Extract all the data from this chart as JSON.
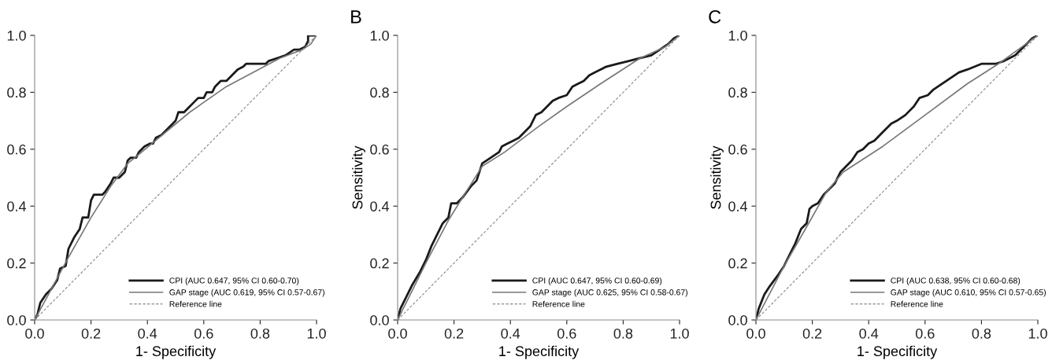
{
  "chart_data": [
    {
      "type": "line",
      "xlabel": "1- Specificity",
      "xlim": [
        0,
        1
      ],
      "ylim": [
        0,
        1
      ],
      "xticks": [
        {
          "value": 0,
          "label": "0.0"
        },
        {
          "value": 0.2,
          "label": "0.2"
        },
        {
          "value": 0.4,
          "label": "0.4"
        },
        {
          "value": 0.6,
          "label": "0.6"
        },
        {
          "value": 0.8,
          "label": "0.8"
        },
        {
          "value": 1,
          "label": "1.0"
        }
      ],
      "yticks": [
        {
          "value": 0,
          "label": "0.0"
        },
        {
          "value": 0.2,
          "label": "0.2"
        },
        {
          "value": 0.4,
          "label": "0.4"
        },
        {
          "value": 0.6,
          "label": "0.6"
        },
        {
          "value": 0.8,
          "label": "0.8"
        },
        {
          "value": 1,
          "label": "1.0"
        }
      ],
      "grid": false,
      "legend": "bottom right",
      "marker": "none",
      "series": [
        {
          "name": "CPI (AUC 0.647, 95% CI 0.60-0.70)",
          "color": "#1a1a1a",
          "line_style": "solid",
          "x": [
            0,
            0.01,
            0.02,
            0.04,
            0.06,
            0.08,
            0.09,
            0.11,
            0.12,
            0.14,
            0.16,
            0.17,
            0.19,
            0.2,
            0.21,
            0.24,
            0.25,
            0.27,
            0.28,
            0.3,
            0.32,
            0.33,
            0.34,
            0.36,
            0.37,
            0.39,
            0.41,
            0.42,
            0.43,
            0.45,
            0.47,
            0.49,
            0.5,
            0.51,
            0.53,
            0.55,
            0.56,
            0.58,
            0.6,
            0.61,
            0.63,
            0.64,
            0.66,
            0.68,
            0.7,
            0.72,
            0.74,
            0.75,
            0.82,
            0.83,
            0.86,
            0.89,
            0.92,
            0.94,
            0.96,
            0.97,
            0.97,
            1.0
          ],
          "values": [
            0,
            0.02,
            0.06,
            0.09,
            0.11,
            0.14,
            0.18,
            0.19,
            0.25,
            0.29,
            0.32,
            0.36,
            0.36,
            0.42,
            0.44,
            0.44,
            0.45,
            0.48,
            0.5,
            0.5,
            0.52,
            0.56,
            0.57,
            0.57,
            0.59,
            0.61,
            0.62,
            0.62,
            0.64,
            0.65,
            0.67,
            0.69,
            0.7,
            0.73,
            0.73,
            0.75,
            0.76,
            0.78,
            0.78,
            0.8,
            0.8,
            0.82,
            0.84,
            0.84,
            0.86,
            0.88,
            0.89,
            0.9,
            0.9,
            0.91,
            0.92,
            0.93,
            0.95,
            0.95,
            0.96,
            0.98,
            1.0,
            1.0
          ]
        },
        {
          "name": "GAP stage (AUC 0.619, 95% CI 0.57-0.67)",
          "color": "#777777",
          "line_style": "solid",
          "x": [
            0,
            0.12,
            0.2,
            0.27,
            0.33,
            0.38,
            0.55,
            0.68,
            0.87,
            0.95,
            0.98,
            1
          ],
          "values": [
            0,
            0.22,
            0.36,
            0.47,
            0.55,
            0.59,
            0.73,
            0.82,
            0.92,
            0.95,
            0.97,
            1
          ]
        },
        {
          "name": "Reference line",
          "color": "#888888",
          "line_style": "dashed",
          "x": [
            0,
            1
          ],
          "values": [
            0,
            1
          ]
        }
      ]
    },
    {
      "type": "line",
      "title": "B",
      "xlabel": "1- Specificity",
      "ylabel": "Sensitivity",
      "xlim": [
        0,
        1
      ],
      "ylim": [
        0,
        1
      ],
      "xticks": [
        {
          "value": 0,
          "label": "0.0"
        },
        {
          "value": 0.2,
          "label": "0.2"
        },
        {
          "value": 0.4,
          "label": "0.4"
        },
        {
          "value": 0.6,
          "label": "0.6"
        },
        {
          "value": 0.8,
          "label": "0.8"
        },
        {
          "value": 1,
          "label": "1.0"
        }
      ],
      "yticks": [
        {
          "value": 0,
          "label": "0.0"
        },
        {
          "value": 0.2,
          "label": "0.2"
        },
        {
          "value": 0.4,
          "label": "0.4"
        },
        {
          "value": 0.6,
          "label": "0.6"
        },
        {
          "value": 0.8,
          "label": "0.8"
        },
        {
          "value": 1,
          "label": "1.0"
        }
      ],
      "grid": false,
      "legend": "bottom right",
      "marker": "none",
      "series": [
        {
          "name": "CPI (AUC 0.647, 95% CI 0.60-0.69)",
          "color": "#1a1a1a",
          "line_style": "solid",
          "x": [
            0,
            0.01,
            0.03,
            0.05,
            0.08,
            0.1,
            0.12,
            0.14,
            0.16,
            0.18,
            0.19,
            0.21,
            0.23,
            0.26,
            0.28,
            0.3,
            0.33,
            0.36,
            0.37,
            0.39,
            0.41,
            0.43,
            0.45,
            0.47,
            0.49,
            0.51,
            0.53,
            0.55,
            0.57,
            0.6,
            0.62,
            0.64,
            0.66,
            0.68,
            0.7,
            0.74,
            0.78,
            0.82,
            0.86,
            0.9,
            0.93,
            0.96,
            0.98,
            1
          ],
          "values": [
            0,
            0.04,
            0.08,
            0.12,
            0.17,
            0.21,
            0.26,
            0.3,
            0.34,
            0.36,
            0.41,
            0.41,
            0.43,
            0.47,
            0.49,
            0.55,
            0.57,
            0.59,
            0.61,
            0.62,
            0.63,
            0.64,
            0.66,
            0.68,
            0.72,
            0.73,
            0.75,
            0.77,
            0.78,
            0.79,
            0.82,
            0.83,
            0.84,
            0.86,
            0.87,
            0.89,
            0.9,
            0.91,
            0.92,
            0.93,
            0.95,
            0.97,
            0.99,
            1
          ]
        },
        {
          "name": "GAP stage (AUC 0.625, 95% CI 0.58-0.67)",
          "color": "#777777",
          "line_style": "solid",
          "x": [
            0,
            0.1,
            0.18,
            0.23,
            0.3,
            0.38,
            0.5,
            0.6,
            0.72,
            0.86,
            0.95,
            1
          ],
          "values": [
            0,
            0.2,
            0.35,
            0.43,
            0.54,
            0.59,
            0.68,
            0.75,
            0.83,
            0.92,
            0.96,
            1
          ]
        },
        {
          "name": "Reference line",
          "color": "#888888",
          "line_style": "dashed",
          "x": [
            0,
            1
          ],
          "values": [
            0,
            1
          ]
        }
      ]
    },
    {
      "type": "line",
      "title": "C",
      "xlabel": "1- Specificity",
      "ylabel": "Sensitivity",
      "xlim": [
        0,
        1
      ],
      "ylim": [
        0,
        1
      ],
      "xticks": [
        {
          "value": 0,
          "label": "0.0"
        },
        {
          "value": 0.2,
          "label": "0.2"
        },
        {
          "value": 0.4,
          "label": "0.4"
        },
        {
          "value": 0.6,
          "label": "0.6"
        },
        {
          "value": 0.8,
          "label": "0.8"
        },
        {
          "value": 1,
          "label": "1.0"
        }
      ],
      "yticks": [
        {
          "value": 0,
          "label": "0.0"
        },
        {
          "value": 0.2,
          "label": "0.2"
        },
        {
          "value": 0.4,
          "label": "0.4"
        },
        {
          "value": 0.6,
          "label": "0.6"
        },
        {
          "value": 0.8,
          "label": "0.8"
        },
        {
          "value": 1,
          "label": "1.0"
        }
      ],
      "grid": false,
      "legend": "bottom right",
      "marker": "none",
      "series": [
        {
          "name": "CPI (AUC 0.638, 95% CI 0.60-0.68)",
          "color": "#1a1a1a",
          "line_style": "solid",
          "x": [
            0,
            0.01,
            0.03,
            0.05,
            0.08,
            0.1,
            0.12,
            0.14,
            0.16,
            0.18,
            0.19,
            0.2,
            0.22,
            0.24,
            0.26,
            0.28,
            0.3,
            0.32,
            0.34,
            0.36,
            0.38,
            0.4,
            0.42,
            0.45,
            0.48,
            0.5,
            0.53,
            0.56,
            0.58,
            0.61,
            0.63,
            0.66,
            0.69,
            0.72,
            0.75,
            0.8,
            0.85,
            0.88,
            0.92,
            0.95,
            0.98,
            1
          ],
          "values": [
            0,
            0.04,
            0.09,
            0.12,
            0.16,
            0.19,
            0.23,
            0.27,
            0.32,
            0.34,
            0.39,
            0.4,
            0.41,
            0.44,
            0.46,
            0.48,
            0.52,
            0.54,
            0.56,
            0.59,
            0.6,
            0.62,
            0.63,
            0.66,
            0.69,
            0.7,
            0.72,
            0.75,
            0.78,
            0.79,
            0.81,
            0.83,
            0.85,
            0.87,
            0.88,
            0.9,
            0.9,
            0.91,
            0.93,
            0.96,
            0.99,
            1
          ]
        },
        {
          "name": "GAP stage (AUC 0.610, 95% CI 0.57-0.65)",
          "color": "#777777",
          "line_style": "solid",
          "x": [
            0,
            0.1,
            0.17,
            0.25,
            0.31,
            0.45,
            0.6,
            0.75,
            0.86,
            0.93,
            1
          ],
          "values": [
            0,
            0.19,
            0.31,
            0.45,
            0.52,
            0.61,
            0.72,
            0.83,
            0.9,
            0.95,
            1
          ]
        },
        {
          "name": "Reference line",
          "color": "#888888",
          "line_style": "dashed",
          "x": [
            0,
            1
          ],
          "values": [
            0,
            1
          ]
        }
      ]
    }
  ]
}
